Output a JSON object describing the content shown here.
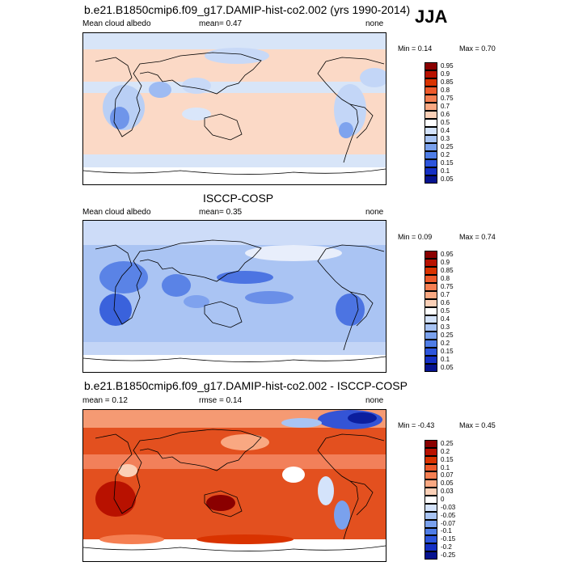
{
  "season": "JJA",
  "panels": [
    {
      "title": "b.e21.B1850cmip6.f09_g17.DAMIP-hist-co2.002 (yrs 1990-2014)",
      "left_label": "Mean cloud albedo",
      "center_label": "mean=  0.47",
      "right_label": "none",
      "min_label": "Min =  0.14",
      "max_label": "Max =  0.70",
      "colorbar": {
        "levels": [
          "0.95",
          "0.9",
          "0.85",
          "0.8",
          "0.75",
          "0.7",
          "0.6",
          "0.5",
          "0.4",
          "0.3",
          "0.25",
          "0.2",
          "0.15",
          "0.1",
          "0.05"
        ],
        "colors": [
          "#8a0000",
          "#b81100",
          "#d93300",
          "#ee5a2b",
          "#f57f52",
          "#f9a882",
          "#fbd0b7",
          "#ffffff",
          "#d4e3fb",
          "#a8c4f4",
          "#7aa1ed",
          "#4f7de6",
          "#2d55dc",
          "#1530c4",
          "#06138f"
        ]
      }
    },
    {
      "title": "ISCCP-COSP",
      "left_label": "Mean cloud albedo",
      "center_label": "mean=  0.35",
      "right_label": "none",
      "min_label": "Min =  0.09",
      "max_label": "Max =  0.74",
      "colorbar": {
        "levels": [
          "0.95",
          "0.9",
          "0.85",
          "0.8",
          "0.75",
          "0.7",
          "0.6",
          "0.5",
          "0.4",
          "0.3",
          "0.25",
          "0.2",
          "0.15",
          "0.1",
          "0.05"
        ],
        "colors": [
          "#8a0000",
          "#b81100",
          "#d93300",
          "#ee5a2b",
          "#f57f52",
          "#f9a882",
          "#fbd0b7",
          "#ffffff",
          "#d4e3fb",
          "#a8c4f4",
          "#7aa1ed",
          "#4f7de6",
          "#2d55dc",
          "#1530c4",
          "#06138f"
        ]
      }
    },
    {
      "title": "b.e21.B1850cmip6.f09_g17.DAMIP-hist-co2.002 - ISCCP-COSP",
      "left_label": "mean =  0.12",
      "center_label": "rmse =  0.14",
      "right_label": "none",
      "min_label": "Min = -0.43",
      "max_label": "Max =  0.45",
      "colorbar": {
        "levels": [
          "0.25",
          "0.2",
          "0.15",
          "0.1",
          "0.07",
          "0.05",
          "0.03",
          "0",
          "-0.03",
          "-0.05",
          "-0.07",
          "-0.1",
          "-0.15",
          "-0.2",
          "-0.25"
        ],
        "colors": [
          "#8a0000",
          "#b81100",
          "#d93300",
          "#ee5a2b",
          "#f57f52",
          "#f9a882",
          "#fbd0b7",
          "#ffffff",
          "#d4e3fb",
          "#a8c4f4",
          "#7aa1ed",
          "#4f7de6",
          "#2d55dc",
          "#1530c4",
          "#06138f"
        ]
      }
    }
  ]
}
